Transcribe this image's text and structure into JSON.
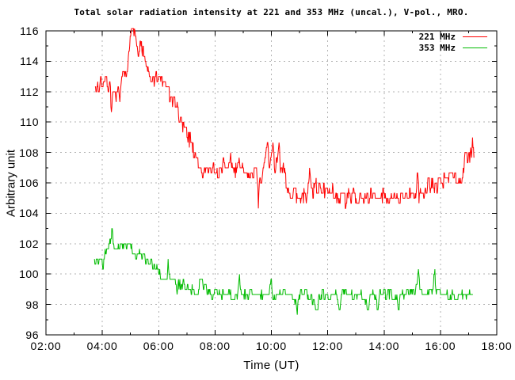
{
  "page": {
    "background": "#ffffff"
  },
  "chart_data": {
    "type": "line",
    "title": "Total solar radiation intensity at 221 and 353 MHz (uncal.), V-pol., MRO.",
    "xlabel": "Time (UT)",
    "ylabel": "Arbitrary unit",
    "xlim_hours": [
      2,
      18
    ],
    "ylim": [
      96,
      116
    ],
    "x_ticks": [
      "02:00",
      "04:00",
      "06:00",
      "08:00",
      "10:00",
      "12:00",
      "14:00",
      "16:00",
      "18:00"
    ],
    "x_tick_hours": [
      2,
      4,
      6,
      8,
      10,
      12,
      14,
      16,
      18
    ],
    "x_minor_hours": [
      3,
      5,
      7,
      9,
      11,
      13,
      15,
      17
    ],
    "y_ticks": [
      96,
      98,
      100,
      102,
      104,
      106,
      108,
      110,
      112,
      114,
      116
    ],
    "y_minor": [
      97,
      99,
      101,
      103,
      105,
      107,
      109,
      111,
      113,
      115
    ],
    "grid": "dashed-major",
    "legend_position": "top-right-inside",
    "axis_color": "#000000",
    "grid_color": "#b3b3b3",
    "series": [
      {
        "name": "221 MHz",
        "color": "#ff0000",
        "noise": 0.5,
        "quantize": 0.3333,
        "trend": [
          [
            3.74,
            112.8
          ],
          [
            3.8,
            112.4
          ],
          [
            3.9,
            112.5
          ],
          [
            4.0,
            112.6
          ],
          [
            4.05,
            112.2
          ],
          [
            4.15,
            112.7
          ],
          [
            4.25,
            112.2
          ],
          [
            4.28,
            112.2
          ],
          [
            4.32,
            110.8
          ],
          [
            4.36,
            112.2
          ],
          [
            4.45,
            112.5
          ],
          [
            4.5,
            111.8
          ],
          [
            4.58,
            112.3
          ],
          [
            4.62,
            111.2
          ],
          [
            4.66,
            112.4
          ],
          [
            4.72,
            113.0
          ],
          [
            4.8,
            113.0
          ],
          [
            4.9,
            114.0
          ],
          [
            5.0,
            115.2
          ],
          [
            5.05,
            115.9
          ],
          [
            5.1,
            115.7
          ],
          [
            5.14,
            116.0
          ],
          [
            5.2,
            115.1
          ],
          [
            5.26,
            114.4
          ],
          [
            5.32,
            115.0
          ],
          [
            5.38,
            115.4
          ],
          [
            5.44,
            114.7
          ],
          [
            5.5,
            114.4
          ],
          [
            5.6,
            113.6
          ],
          [
            5.7,
            113.2
          ],
          [
            5.8,
            112.5
          ],
          [
            5.9,
            112.8
          ],
          [
            6.0,
            112.9
          ],
          [
            6.1,
            112.8
          ],
          [
            6.2,
            112.4
          ],
          [
            6.3,
            112.2
          ],
          [
            6.4,
            111.8
          ],
          [
            6.5,
            111.3
          ],
          [
            6.6,
            111.0
          ],
          [
            6.7,
            110.6
          ],
          [
            6.8,
            110.0
          ],
          [
            6.9,
            109.7
          ],
          [
            7.0,
            109.3
          ],
          [
            7.1,
            108.8
          ],
          [
            7.2,
            108.4
          ],
          [
            7.3,
            107.9
          ],
          [
            7.4,
            107.4
          ],
          [
            7.5,
            107.1
          ],
          [
            7.56,
            106.5
          ],
          [
            7.62,
            107.0
          ],
          [
            7.8,
            106.8
          ],
          [
            8.0,
            107.0
          ],
          [
            8.2,
            106.8
          ],
          [
            8.3,
            107.5
          ],
          [
            8.35,
            106.9
          ],
          [
            8.5,
            107.0
          ],
          [
            8.56,
            107.7
          ],
          [
            8.62,
            106.8
          ],
          [
            8.8,
            106.9
          ],
          [
            9.0,
            107.3
          ],
          [
            9.05,
            106.7
          ],
          [
            9.2,
            106.8
          ],
          [
            9.35,
            106.5
          ],
          [
            9.5,
            106.5
          ],
          [
            9.54,
            104.4
          ],
          [
            9.58,
            106.4
          ],
          [
            9.7,
            106.6
          ],
          [
            9.8,
            107.6
          ],
          [
            9.86,
            108.6
          ],
          [
            9.92,
            107.0
          ],
          [
            10.0,
            107.5
          ],
          [
            10.06,
            108.5
          ],
          [
            10.12,
            106.8
          ],
          [
            10.2,
            107.2
          ],
          [
            10.28,
            108.5
          ],
          [
            10.34,
            106.6
          ],
          [
            10.42,
            107.0
          ],
          [
            10.5,
            106.3
          ],
          [
            10.6,
            105.6
          ],
          [
            10.7,
            105.1
          ],
          [
            10.8,
            105.6
          ],
          [
            10.9,
            105.2
          ],
          [
            11.0,
            104.8
          ],
          [
            11.1,
            105.4
          ],
          [
            11.2,
            104.9
          ],
          [
            11.3,
            105.6
          ],
          [
            11.36,
            106.5
          ],
          [
            11.42,
            105.3
          ],
          [
            11.5,
            105.6
          ],
          [
            11.56,
            106.4
          ],
          [
            11.62,
            105.4
          ],
          [
            11.7,
            105.6
          ],
          [
            11.8,
            105.7
          ],
          [
            11.9,
            105.5
          ],
          [
            12.0,
            105.7
          ],
          [
            12.1,
            105.4
          ],
          [
            12.2,
            105.5
          ],
          [
            12.3,
            105.2
          ],
          [
            12.4,
            105.0
          ],
          [
            12.5,
            105.2
          ],
          [
            12.6,
            104.9
          ],
          [
            12.7,
            105.1
          ],
          [
            12.8,
            105.0
          ],
          [
            12.9,
            105.2
          ],
          [
            13.0,
            105.0
          ],
          [
            13.1,
            105.1
          ],
          [
            13.2,
            104.9
          ],
          [
            13.3,
            105.1
          ],
          [
            13.4,
            105.0
          ],
          [
            13.5,
            105.2
          ],
          [
            13.6,
            104.9
          ],
          [
            13.7,
            105.1
          ],
          [
            13.8,
            105.0
          ],
          [
            13.9,
            105.2
          ],
          [
            14.0,
            105.1
          ],
          [
            14.1,
            105.0
          ],
          [
            14.2,
            105.1
          ],
          [
            14.3,
            104.9
          ],
          [
            14.4,
            105.0
          ],
          [
            14.5,
            105.2
          ],
          [
            14.6,
            105.1
          ],
          [
            14.7,
            105.2
          ],
          [
            14.8,
            105.1
          ],
          [
            14.9,
            105.3
          ],
          [
            15.0,
            105.2
          ],
          [
            15.1,
            105.0
          ],
          [
            15.18,
            106.4
          ],
          [
            15.24,
            105.2
          ],
          [
            15.35,
            105.3
          ],
          [
            15.5,
            105.4
          ],
          [
            15.6,
            106.4
          ],
          [
            15.66,
            105.4
          ],
          [
            15.74,
            106.4
          ],
          [
            15.8,
            105.6
          ],
          [
            15.9,
            105.9
          ],
          [
            16.0,
            106.2
          ],
          [
            16.1,
            106.1
          ],
          [
            16.2,
            106.4
          ],
          [
            16.3,
            106.2
          ],
          [
            16.4,
            106.3
          ],
          [
            16.5,
            106.2
          ],
          [
            16.6,
            106.4
          ],
          [
            16.7,
            106.3
          ],
          [
            16.8,
            106.7
          ],
          [
            16.86,
            107.4
          ],
          [
            16.92,
            107.7
          ],
          [
            16.98,
            107.5
          ],
          [
            17.04,
            107.9
          ],
          [
            17.1,
            107.8
          ],
          [
            17.13,
            109.0
          ],
          [
            17.16,
            108.0
          ],
          [
            17.2,
            107.9
          ]
        ]
      },
      {
        "name": "353 MHz",
        "color": "#00bb00",
        "noise": 0.28,
        "quantize": 0.3333,
        "trend": [
          [
            3.72,
            101.0
          ],
          [
            3.8,
            100.8
          ],
          [
            3.9,
            100.9
          ],
          [
            3.98,
            101.2
          ],
          [
            4.03,
            100.3
          ],
          [
            4.1,
            101.5
          ],
          [
            4.2,
            101.8
          ],
          [
            4.3,
            102.0
          ],
          [
            4.35,
            103.0
          ],
          [
            4.4,
            101.9
          ],
          [
            4.5,
            101.7
          ],
          [
            4.6,
            101.9
          ],
          [
            4.7,
            101.8
          ],
          [
            4.8,
            101.9
          ],
          [
            4.9,
            101.7
          ],
          [
            5.0,
            101.8
          ],
          [
            5.1,
            101.4
          ],
          [
            5.2,
            101.2
          ],
          [
            5.3,
            101.3
          ],
          [
            5.4,
            101.0
          ],
          [
            5.5,
            101.1
          ],
          [
            5.6,
            100.8
          ],
          [
            5.7,
            100.9
          ],
          [
            5.8,
            100.7
          ],
          [
            5.9,
            100.4
          ],
          [
            6.0,
            100.1
          ],
          [
            6.1,
            99.9
          ],
          [
            6.2,
            99.7
          ],
          [
            6.3,
            99.6
          ],
          [
            6.33,
            100.8
          ],
          [
            6.38,
            99.6
          ],
          [
            6.5,
            99.4
          ],
          [
            6.6,
            99.5
          ],
          [
            6.65,
            98.9
          ],
          [
            6.7,
            99.3
          ],
          [
            6.8,
            99.2
          ],
          [
            6.9,
            99.3
          ],
          [
            7.0,
            99.1
          ],
          [
            7.1,
            99.0
          ],
          [
            7.2,
            98.9
          ],
          [
            7.3,
            98.7
          ],
          [
            7.4,
            98.8
          ],
          [
            7.45,
            99.4
          ],
          [
            7.55,
            99.8
          ],
          [
            7.6,
            98.9
          ],
          [
            7.65,
            99.5
          ],
          [
            7.72,
            98.8
          ],
          [
            7.8,
            98.7
          ],
          [
            7.9,
            98.6
          ],
          [
            8.0,
            98.6
          ],
          [
            8.2,
            98.7
          ],
          [
            8.4,
            98.6
          ],
          [
            8.6,
            98.7
          ],
          [
            8.8,
            98.6
          ],
          [
            8.87,
            99.9
          ],
          [
            8.93,
            98.7
          ],
          [
            9.1,
            98.6
          ],
          [
            9.3,
            98.7
          ],
          [
            9.5,
            98.6
          ],
          [
            9.7,
            98.7
          ],
          [
            9.9,
            98.6
          ],
          [
            10.0,
            99.9
          ],
          [
            10.05,
            98.7
          ],
          [
            10.2,
            98.6
          ],
          [
            10.4,
            98.7
          ],
          [
            10.6,
            98.6
          ],
          [
            10.8,
            98.6
          ],
          [
            10.93,
            97.5
          ],
          [
            10.98,
            98.6
          ],
          [
            11.2,
            98.7
          ],
          [
            11.4,
            98.6
          ],
          [
            11.64,
            97.5
          ],
          [
            11.7,
            98.6
          ],
          [
            11.9,
            98.7
          ],
          [
            12.1,
            98.6
          ],
          [
            12.3,
            98.7
          ],
          [
            12.42,
            97.6
          ],
          [
            12.48,
            98.6
          ],
          [
            12.7,
            98.7
          ],
          [
            12.9,
            98.6
          ],
          [
            13.1,
            98.7
          ],
          [
            13.3,
            98.6
          ],
          [
            13.44,
            97.6
          ],
          [
            13.5,
            98.6
          ],
          [
            13.65,
            98.7
          ],
          [
            13.78,
            97.7
          ],
          [
            13.84,
            98.6
          ],
          [
            14.0,
            98.7
          ],
          [
            14.2,
            98.6
          ],
          [
            14.4,
            98.7
          ],
          [
            14.52,
            97.7
          ],
          [
            14.58,
            98.6
          ],
          [
            14.7,
            98.7
          ],
          [
            14.9,
            98.8
          ],
          [
            15.0,
            98.9
          ],
          [
            15.1,
            98.8
          ],
          [
            15.22,
            100.0
          ],
          [
            15.28,
            98.9
          ],
          [
            15.4,
            98.8
          ],
          [
            15.55,
            98.8
          ],
          [
            15.7,
            98.9
          ],
          [
            15.8,
            100.0
          ],
          [
            15.86,
            98.8
          ],
          [
            16.0,
            98.7
          ],
          [
            16.2,
            98.6
          ],
          [
            16.4,
            98.7
          ],
          [
            16.6,
            98.6
          ],
          [
            16.8,
            98.7
          ],
          [
            17.0,
            98.6
          ],
          [
            17.16,
            98.7
          ]
        ]
      }
    ]
  }
}
